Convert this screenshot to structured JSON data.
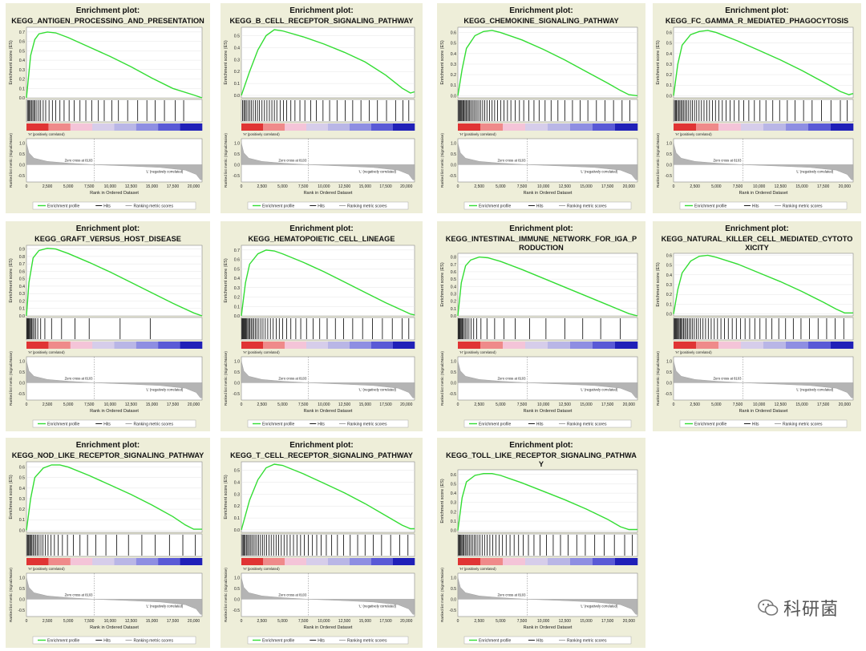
{
  "common": {
    "header": "Enrichment plot:",
    "es_axis_label": "Enrichment score (ES)",
    "metric_axis_label": "Ranked list metric (Signal2Noise)",
    "x_axis_label": "Rank in Ordered Dataset",
    "x_ticks": [
      "0",
      "2,500",
      "5,000",
      "7,500",
      "10,000",
      "12,500",
      "15,000",
      "17,500",
      "20,000"
    ],
    "pos_label": "'H' (positively correlated)",
    "neg_label": "'L' (negatively correlated)",
    "zero_cross": "Zero cross at 8103",
    "legend": [
      "Enrichment profile",
      "Hits",
      "Ranking metric scores"
    ],
    "metric_ticks": [
      "1.0",
      "0.5",
      "0.0",
      "-0.5"
    ],
    "colors": {
      "profile": "#33dd33",
      "hits": "#000000",
      "metric": "#b4b4b4",
      "panel_bg": "#eeeed9"
    }
  },
  "watermark": "科研菌",
  "chart_data": [
    {
      "type": "line",
      "title": "KEGG_ANTIGEN_PROCESSING_AND_PRESENTATION",
      "ylim": [
        0,
        0.75
      ],
      "yticks": [
        "0.7",
        "0.6",
        "0.5",
        "0.4",
        "0.3",
        "0.2",
        "0.1",
        "0.0"
      ],
      "x": [
        0,
        500,
        1000,
        1500,
        2500,
        3500,
        5000,
        7500,
        10000,
        12500,
        15000,
        17500,
        20000,
        21000
      ],
      "y": [
        0,
        0.45,
        0.62,
        0.68,
        0.7,
        0.69,
        0.64,
        0.54,
        0.44,
        0.33,
        0.21,
        0.1,
        0.03,
        0
      ],
      "hits": [
        120,
        260,
        350,
        480,
        600,
        760,
        900,
        1050,
        1250,
        1500,
        1700,
        2000,
        2300,
        2700,
        3100,
        3500,
        4000,
        4500,
        5100,
        5700,
        6400,
        7100,
        7800,
        8600,
        9300,
        10200,
        11000,
        12100,
        13300,
        14400,
        15400,
        16500,
        17800,
        18800
      ]
    },
    {
      "type": "line",
      "title": "KEGG_B_CELL_RECEPTOR_SIGNALING_PATHWAY",
      "ylim": [
        -0.02,
        0.57
      ],
      "yticks": [
        "0.5",
        "0.4",
        "0.3",
        "0.2",
        "0.1",
        "0.0"
      ],
      "x": [
        0,
        1000,
        2000,
        3000,
        4000,
        5000,
        7500,
        10000,
        12500,
        15000,
        17500,
        19500,
        20500,
        21000
      ],
      "y": [
        0,
        0.2,
        0.38,
        0.5,
        0.55,
        0.54,
        0.49,
        0.43,
        0.36,
        0.28,
        0.17,
        0.06,
        0.02,
        0.03
      ],
      "hits": [
        150,
        300,
        450,
        600,
        800,
        1000,
        1200,
        1450,
        1700,
        1950,
        2200,
        2500,
        2800,
        3100,
        3400,
        3700,
        4000,
        4300,
        4700,
        5100,
        5500,
        6000,
        6500,
        7100,
        7700,
        8400,
        9100,
        9900,
        10700,
        11600,
        12600,
        13500,
        14500,
        15500,
        16500,
        17600,
        18700,
        19600,
        20300
      ]
    },
    {
      "type": "line",
      "title": "KEGG_CHEMOKINE_SIGNALING_PATHWAY",
      "ylim": [
        -0.02,
        0.65
      ],
      "yticks": [
        "0.6",
        "0.5",
        "0.4",
        "0.3",
        "0.2",
        "0.1",
        "0.0"
      ],
      "x": [
        0,
        500,
        1000,
        2000,
        3000,
        4000,
        5000,
        7500,
        10000,
        12500,
        15000,
        17500,
        19000,
        20000,
        21000
      ],
      "y": [
        0,
        0.25,
        0.45,
        0.57,
        0.61,
        0.62,
        0.6,
        0.53,
        0.44,
        0.34,
        0.23,
        0.12,
        0.05,
        0.01,
        0
      ],
      "hits": [
        80,
        180,
        280,
        380,
        480,
        600,
        720,
        840,
        960,
        1100,
        1240,
        1380,
        1520,
        1700,
        1880,
        2060,
        2250,
        2450,
        2650,
        2900,
        3150,
        3400,
        3700,
        4000,
        4300,
        4650,
        5000,
        5400,
        5800,
        6200,
        6700,
        7200,
        7700,
        8300,
        8900,
        9500,
        10200,
        10900,
        11700,
        12500,
        13400,
        14300,
        15200,
        16200,
        17200,
        18200,
        19200,
        20100
      ]
    },
    {
      "type": "line",
      "title": "KEGG_FC_GAMMA_R_MEDIATED_PHAGOCYTOSIS",
      "ylim": [
        -0.02,
        0.65
      ],
      "yticks": [
        "0.6",
        "0.5",
        "0.4",
        "0.3",
        "0.2",
        "0.1",
        "0.0"
      ],
      "x": [
        0,
        500,
        1000,
        2000,
        3000,
        4000,
        5000,
        7500,
        10000,
        12500,
        15000,
        17500,
        19500,
        20500,
        21000
      ],
      "y": [
        0,
        0.3,
        0.48,
        0.58,
        0.61,
        0.62,
        0.6,
        0.52,
        0.43,
        0.34,
        0.24,
        0.13,
        0.04,
        0.01,
        0.02
      ],
      "hits": [
        100,
        220,
        340,
        460,
        600,
        740,
        880,
        1040,
        1200,
        1380,
        1560,
        1760,
        1980,
        2200,
        2450,
        2700,
        2980,
        3260,
        3560,
        3880,
        4200,
        4550,
        4900,
        5300,
        5700,
        6150,
        6600,
        7100,
        7650,
        8200,
        8800,
        9450,
        10100,
        10800,
        11600,
        12400,
        13300,
        14200,
        15200,
        16200,
        17300,
        18400,
        19500,
        20300
      ]
    },
    {
      "type": "line",
      "title": "KEGG_GRAFT_VERSUS_HOST_DISEASE",
      "ylim": [
        0,
        0.95
      ],
      "yticks": [
        "0.9",
        "0.8",
        "0.7",
        "0.6",
        "0.5",
        "0.4",
        "0.3",
        "0.2",
        "0.1",
        "0.0"
      ],
      "x": [
        0,
        300,
        800,
        1500,
        2500,
        3500,
        5000,
        7500,
        10000,
        12500,
        15000,
        17500,
        20000,
        21000
      ],
      "y": [
        0,
        0.45,
        0.78,
        0.88,
        0.91,
        0.9,
        0.84,
        0.72,
        0.59,
        0.45,
        0.31,
        0.17,
        0.04,
        0
      ],
      "hits": [
        60,
        140,
        220,
        300,
        400,
        500,
        620,
        760,
        920,
        1100,
        1350,
        1700,
        2200,
        3000,
        4200,
        5800,
        7500,
        11200,
        14800
      ]
    },
    {
      "type": "line",
      "title": "KEGG_HEMATOPOIETIC_CELL_LINEAGE",
      "ylim": [
        0,
        0.75
      ],
      "yticks": [
        "0.7",
        "0.6",
        "0.5",
        "0.4",
        "0.3",
        "0.2",
        "0.1",
        "0.0"
      ],
      "x": [
        0,
        500,
        1000,
        2000,
        3000,
        4000,
        5000,
        7500,
        10000,
        12500,
        15000,
        17500,
        19500,
        20500,
        21000
      ],
      "y": [
        0,
        0.35,
        0.55,
        0.66,
        0.7,
        0.69,
        0.66,
        0.57,
        0.47,
        0.36,
        0.25,
        0.14,
        0.06,
        0.02,
        0.01
      ],
      "hits": [
        70,
        160,
        250,
        340,
        440,
        540,
        650,
        770,
        900,
        1040,
        1190,
        1350,
        1520,
        1700,
        1900,
        2120,
        2360,
        2620,
        2900,
        3200,
        3520,
        3860,
        4220,
        4600,
        5000,
        5500,
        6000,
        6600,
        7200,
        7900,
        8700,
        9500,
        10400,
        11400,
        12400,
        13500,
        14700,
        15900,
        17100,
        18300,
        19500,
        20300
      ]
    },
    {
      "type": "line",
      "title": "KEGG_INTESTINAL_IMMUNE_NETWORK_FOR_IGA_PRODUCTION",
      "ylim": [
        0,
        0.85
      ],
      "yticks": [
        "0.8",
        "0.7",
        "0.6",
        "0.5",
        "0.4",
        "0.3",
        "0.2",
        "0.1",
        "0.0"
      ],
      "x": [
        0,
        400,
        900,
        1500,
        2500,
        3500,
        5000,
        7500,
        10000,
        12500,
        15000,
        17500,
        20000,
        21000
      ],
      "y": [
        0,
        0.45,
        0.68,
        0.76,
        0.8,
        0.79,
        0.74,
        0.63,
        0.51,
        0.39,
        0.27,
        0.15,
        0.03,
        0
      ],
      "hits": [
        60,
        140,
        220,
        300,
        400,
        500,
        620,
        760,
        920,
        1100,
        1300,
        1550,
        1850,
        2200,
        2700,
        3400,
        4300,
        5400,
        6700,
        8400,
        10300,
        12500,
        14600,
        16700,
        19000
      ]
    },
    {
      "type": "line",
      "title": "KEGG_NATURAL_KILLER_CELL_MEDIATED_CYTOTOXICITY",
      "ylim": [
        -0.02,
        0.62
      ],
      "yticks": [
        "0.6",
        "0.5",
        "0.4",
        "0.3",
        "0.2",
        "0.1",
        "0.0"
      ],
      "x": [
        0,
        500,
        1000,
        2000,
        3000,
        4000,
        5000,
        7500,
        10000,
        12500,
        15000,
        17500,
        19000,
        20000,
        21000
      ],
      "y": [
        0,
        0.25,
        0.42,
        0.54,
        0.59,
        0.6,
        0.58,
        0.51,
        0.42,
        0.33,
        0.23,
        0.12,
        0.05,
        0.01,
        0.01
      ],
      "hits": [
        80,
        170,
        260,
        350,
        450,
        550,
        660,
        780,
        900,
        1030,
        1170,
        1320,
        1480,
        1650,
        1830,
        2020,
        2220,
        2430,
        2660,
        2900,
        3160,
        3440,
        3740,
        4060,
        4400,
        4760,
        5140,
        5540,
        5960,
        6400,
        6860,
        7340,
        7840,
        8360,
        8900,
        9500,
        10100,
        10800,
        11500,
        12300,
        13100,
        14000,
        14900,
        15900,
        16900,
        17900,
        18900,
        19900
      ]
    },
    {
      "type": "line",
      "title": "KEGG_NOD_LIKE_RECEPTOR_SIGNALING_PATHWAY",
      "ylim": [
        -0.02,
        0.65
      ],
      "yticks": [
        "0.6",
        "0.5",
        "0.4",
        "0.3",
        "0.2",
        "0.1",
        "0.0"
      ],
      "x": [
        0,
        500,
        1000,
        2000,
        3000,
        4000,
        5000,
        7500,
        10000,
        12500,
        15000,
        17500,
        19000,
        20000,
        21000
      ],
      "y": [
        0,
        0.3,
        0.5,
        0.59,
        0.62,
        0.62,
        0.6,
        0.52,
        0.43,
        0.34,
        0.24,
        0.13,
        0.05,
        0.01,
        0.01
      ],
      "hits": [
        90,
        190,
        290,
        400,
        520,
        650,
        790,
        950,
        1120,
        1300,
        1500,
        1730,
        1980,
        2260,
        2580,
        2940,
        3340,
        3800,
        4300,
        4900,
        5600,
        6400,
        7300,
        8300,
        9500,
        10800,
        12200,
        13800,
        15400,
        17100,
        18700,
        20200
      ]
    },
    {
      "type": "line",
      "title": "KEGG_T_CELL_RECEPTOR_SIGNALING_PATHWAY",
      "ylim": [
        -0.02,
        0.57
      ],
      "yticks": [
        "0.5",
        "0.4",
        "0.3",
        "0.2",
        "0.1",
        "0.0"
      ],
      "x": [
        0,
        1000,
        2000,
        3000,
        4000,
        5000,
        7500,
        10000,
        12500,
        15000,
        17500,
        19500,
        20500,
        21000
      ],
      "y": [
        0,
        0.25,
        0.42,
        0.52,
        0.55,
        0.54,
        0.47,
        0.39,
        0.31,
        0.22,
        0.12,
        0.04,
        0.01,
        0.01
      ],
      "hits": [
        100,
        220,
        340,
        470,
        610,
        760,
        920,
        1090,
        1270,
        1460,
        1660,
        1870,
        2090,
        2320,
        2560,
        2810,
        3070,
        3340,
        3620,
        3910,
        4210,
        4520,
        4840,
        5180,
        5540,
        5920,
        6320,
        6740,
        7180,
        7640,
        8120,
        8620,
        9140,
        9680,
        10300,
        10950,
        11650,
        12400,
        13200,
        14100,
        15000,
        16000,
        17000,
        18100,
        19200,
        20200
      ]
    },
    {
      "type": "line",
      "title": "KEGG_TOLL_LIKE_RECEPTOR_SIGNALING_PATHWAY",
      "ylim": [
        -0.02,
        0.65
      ],
      "yticks": [
        "0.6",
        "0.5",
        "0.4",
        "0.3",
        "0.2",
        "0.1",
        "0.0"
      ],
      "x": [
        0,
        500,
        1000,
        2000,
        3000,
        4000,
        5000,
        7500,
        10000,
        12500,
        15000,
        17500,
        19000,
        20000,
        21000
      ],
      "y": [
        0,
        0.35,
        0.52,
        0.59,
        0.61,
        0.61,
        0.59,
        0.51,
        0.42,
        0.33,
        0.23,
        0.12,
        0.04,
        0.01,
        0.01
      ],
      "hits": [
        80,
        170,
        260,
        360,
        470,
        590,
        720,
        860,
        1010,
        1170,
        1340,
        1520,
        1710,
        1910,
        2120,
        2340,
        2580,
        2840,
        3120,
        3420,
        3740,
        4080,
        4440,
        4820,
        5220,
        5650,
        6100,
        6580,
        7100,
        7650,
        8250,
        8900,
        9600,
        10350,
        11150,
        12000,
        12900,
        13900,
        14900,
        16000,
        17100,
        18300,
        19500,
        20400
      ]
    }
  ]
}
